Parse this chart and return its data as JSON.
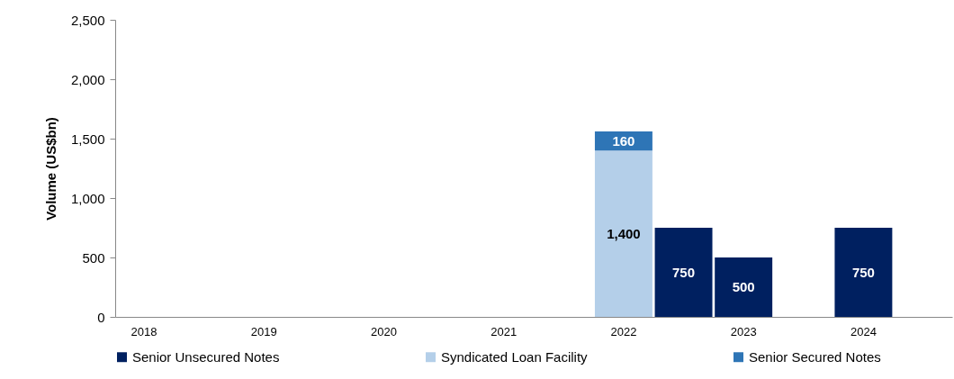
{
  "chart_data": {
    "type": "bar",
    "stacked": true,
    "ylabel": "Volume (US$bn)",
    "categories": [
      "2018",
      null,
      "2019",
      null,
      "2020",
      null,
      "2021",
      null,
      "2022",
      null,
      "2023",
      null,
      "2024",
      null
    ],
    "series": [
      {
        "name": "Senior Unsecured Notes",
        "color": "#002060",
        "values": [
          null,
          null,
          null,
          null,
          null,
          null,
          null,
          null,
          null,
          750,
          500,
          null,
          750,
          null
        ],
        "value_labels": [
          null,
          null,
          null,
          null,
          null,
          null,
          null,
          null,
          null,
          "750",
          "500",
          null,
          "750",
          null
        ]
      },
      {
        "name": "Syndicated Loan Facility",
        "color": "#b4cfe9",
        "values": [
          null,
          null,
          null,
          null,
          null,
          null,
          null,
          null,
          1400,
          null,
          null,
          null,
          null,
          null
        ],
        "value_labels": [
          null,
          null,
          null,
          null,
          null,
          null,
          null,
          null,
          "1,400",
          null,
          null,
          null,
          null,
          null
        ]
      },
      {
        "name": "Senior Secured Notes",
        "color": "#2e75b6",
        "values": [
          null,
          null,
          null,
          null,
          null,
          null,
          null,
          null,
          160,
          null,
          null,
          null,
          null,
          null
        ],
        "value_labels": [
          null,
          null,
          null,
          null,
          null,
          null,
          null,
          null,
          "160",
          null,
          null,
          null,
          null,
          null
        ]
      }
    ],
    "ylim": [
      0,
      2500
    ],
    "yticks": [
      0,
      {
        "value": 500,
        "label": "500"
      },
      {
        "value": 1000,
        "label": "1,000"
      },
      {
        "value": 1500,
        "label": "1,500"
      },
      {
        "value": 2000,
        "label": "2,000"
      },
      {
        "value": 2500,
        "label": "2,500"
      }
    ],
    "grid": false,
    "legend": "bottom"
  }
}
